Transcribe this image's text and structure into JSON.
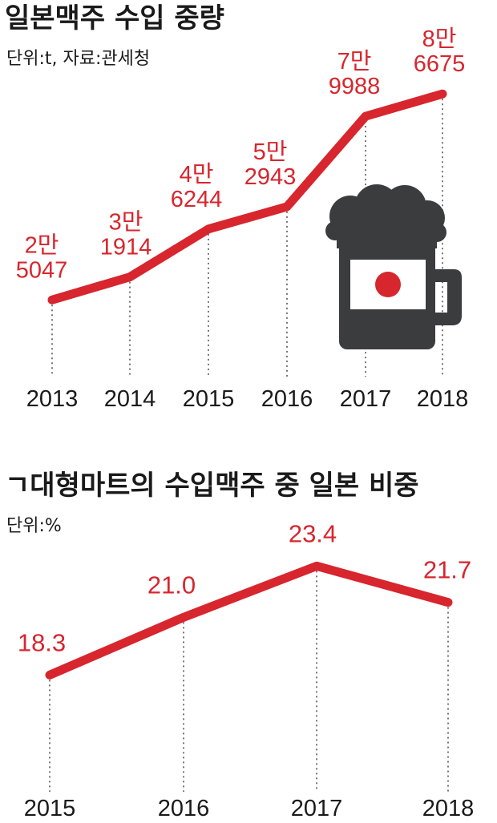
{
  "colors": {
    "accent": "#d7262e",
    "text": "#1a1a1a",
    "mug": "#3b3c3e",
    "flag_bg": "#ffffff"
  },
  "chart_data": [
    {
      "type": "line",
      "title": "일본맥주 수입 중량",
      "subtitle": "단위:t, 자료:관세청",
      "x": [
        "2013",
        "2014",
        "2015",
        "2016",
        "2017",
        "2018"
      ],
      "series": [
        {
          "values": [
            25047,
            31914,
            46244,
            52943,
            79988,
            86675
          ]
        }
      ],
      "labels_top": [
        "2만",
        "3만",
        "4만",
        "5만",
        "7만",
        "8만"
      ],
      "labels_bottom": [
        "5047",
        "1914",
        "6244",
        "2943",
        "9988",
        "6675"
      ],
      "ylim": [
        16000,
        92000
      ],
      "grid": false,
      "decoration": "beer-mug-japan-flag-icon"
    },
    {
      "type": "line",
      "title": "ㄱ대형마트의 수입맥주 중 일본 비중",
      "subtitle": "단위:%",
      "x": [
        "2015",
        "2016",
        "2017",
        "2018"
      ],
      "series": [
        {
          "values": [
            18.3,
            21.0,
            23.4,
            21.7
          ]
        }
      ],
      "labels": [
        "18.3",
        "21.0",
        "23.4",
        "21.7"
      ],
      "ylim": [
        14,
        26
      ],
      "grid": false
    }
  ]
}
